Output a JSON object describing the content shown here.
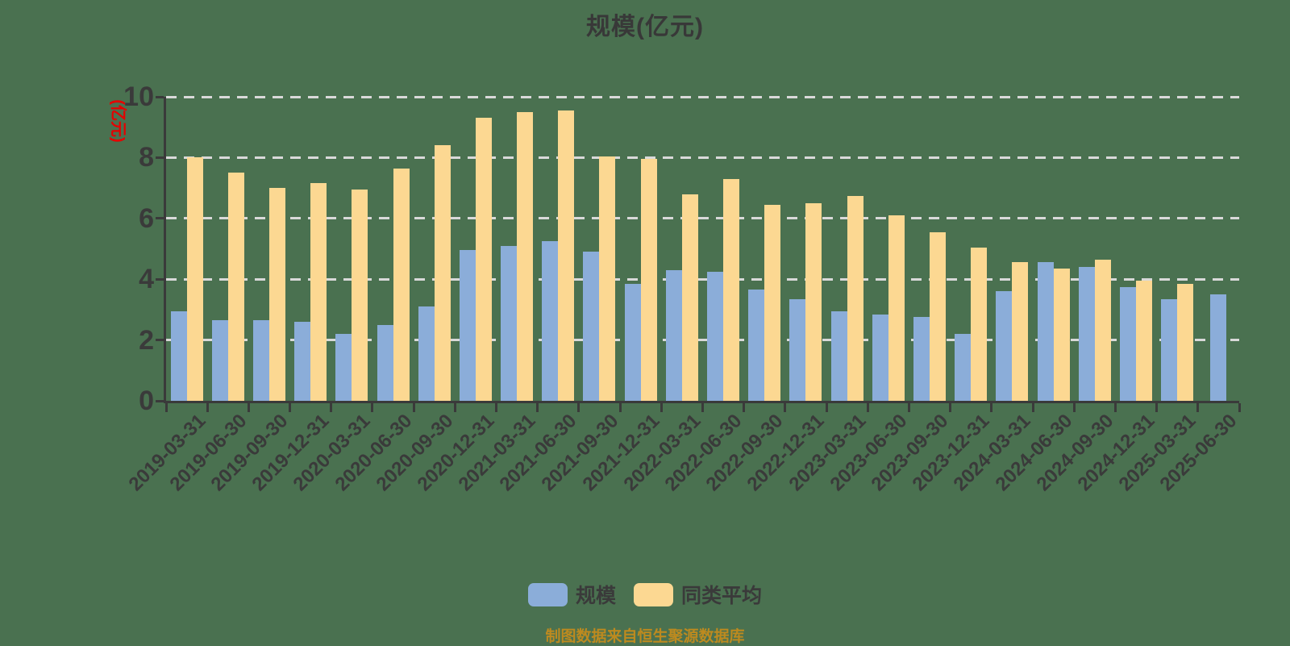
{
  "title": "规模(亿元)",
  "y_axis": {
    "name": "(亿元)",
    "name_color": "#E60000",
    "tick_values": [
      0,
      2,
      4,
      6,
      8,
      10
    ],
    "grid_values": [
      2,
      4,
      6,
      8,
      10
    ]
  },
  "legend": {
    "items": [
      {
        "label": "规模",
        "color": "#8BADD9"
      },
      {
        "label": "同类平均",
        "color": "#FCD892"
      }
    ]
  },
  "footer": {
    "text": "制图数据来自恒生聚源数据库",
    "color": "#BD8A1F"
  },
  "colors": {
    "background": "#4A7150",
    "axis": "#3A3A3A",
    "gridline": "#D9D9D9",
    "bar_scale": "#8BADD9",
    "bar_average": "#FCD892",
    "text": "#3A3A3A"
  },
  "chart_data": {
    "type": "bar",
    "title": "规模(亿元)",
    "xlabel": "",
    "ylabel": "(亿元)",
    "ylim": [
      0,
      10
    ],
    "grid": "horizontal dashed lines at 2,4,6,8,10",
    "legend_position": "bottom",
    "categories": [
      "2019-03-31",
      "2019-06-30",
      "2019-09-30",
      "2019-12-31",
      "2020-03-31",
      "2020-06-30",
      "2020-09-30",
      "2020-12-31",
      "2021-03-31",
      "2021-06-30",
      "2021-09-30",
      "2021-12-31",
      "2022-03-31",
      "2022-06-30",
      "2022-09-30",
      "2022-12-31",
      "2023-03-31",
      "2023-06-30",
      "2023-09-30",
      "2023-12-31",
      "2024-03-31",
      "2024-06-30",
      "2024-09-30",
      "2024-12-31",
      "2025-03-31",
      "2025-06-30"
    ],
    "series": [
      {
        "name": "规模",
        "color": "#8BADD9",
        "values": [
          2.95,
          2.65,
          2.65,
          2.6,
          2.2,
          2.5,
          3.1,
          4.95,
          5.1,
          5.25,
          4.9,
          3.85,
          4.3,
          4.25,
          3.65,
          3.35,
          2.95,
          2.85,
          2.75,
          2.2,
          3.6,
          4.55,
          4.4,
          3.75,
          3.35,
          3.5
        ]
      },
      {
        "name": "同类平均",
        "color": "#FCD892",
        "values": [
          8.0,
          7.5,
          7.0,
          7.15,
          6.95,
          7.65,
          8.4,
          9.3,
          9.5,
          9.55,
          8.05,
          7.95,
          6.8,
          7.3,
          6.45,
          6.5,
          6.75,
          6.1,
          5.55,
          5.05,
          4.55,
          4.35,
          4.65,
          3.95,
          3.85,
          null
        ]
      }
    ]
  }
}
